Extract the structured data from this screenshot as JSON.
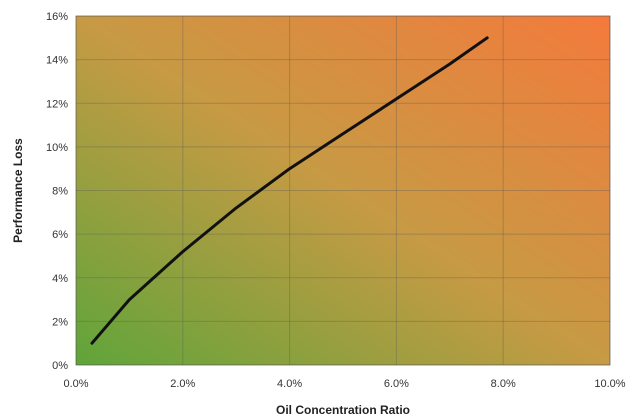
{
  "chart_data": {
    "type": "line",
    "title": "",
    "xlabel": "Oil Concentration Ratio",
    "ylabel": "Performance Loss",
    "xlim": [
      0,
      10
    ],
    "ylim": [
      0,
      16
    ],
    "x_ticks": [
      "0.0%",
      "2.0%",
      "4.0%",
      "6.0%",
      "8.0%",
      "10.0%"
    ],
    "y_ticks": [
      "0%",
      "2%",
      "4%",
      "6%",
      "8%",
      "10%",
      "12%",
      "14%",
      "16%"
    ],
    "grid": true,
    "legend": "none",
    "background_gradient": [
      "#5fa53a",
      "#f47a3c"
    ],
    "series": [
      {
        "color": "#111111",
        "x": [
          0.3,
          1.0,
          2.0,
          3.0,
          4.0,
          5.0,
          6.0,
          7.0,
          7.7
        ],
        "y": [
          1.0,
          3.0,
          5.2,
          7.2,
          9.0,
          10.6,
          12.2,
          13.8,
          15.0
        ]
      }
    ]
  }
}
